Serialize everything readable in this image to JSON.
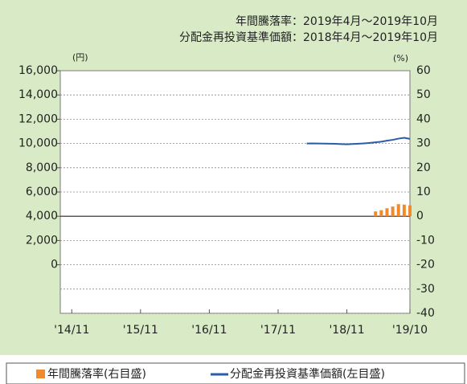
{
  "chart_data": {
    "type": "bar_line",
    "annotations": [
      "年間騰落率：2019年4月～2019年10月",
      "分配金再投資基準価額：2018年4月～2019年10月"
    ],
    "y_unit": "(円)",
    "y2_unit": "(%)",
    "xlim": [
      "2014-09",
      "2019-10"
    ],
    "xticks": [
      {
        "value": "2014-11",
        "label": "'14/11"
      },
      {
        "value": "2015-11",
        "label": "'15/11"
      },
      {
        "value": "2016-11",
        "label": "'16/11"
      },
      {
        "value": "2017-11",
        "label": "'17/11"
      },
      {
        "value": "2018-11",
        "label": "'18/11"
      },
      {
        "value": "2019-10",
        "label": "'19/10"
      }
    ],
    "ylim": [
      -4000,
      16000
    ],
    "yticks": [
      {
        "value": 16000,
        "label": "16,000"
      },
      {
        "value": 14000,
        "label": "14,000"
      },
      {
        "value": 12000,
        "label": "12,000"
      },
      {
        "value": 10000,
        "label": "10,000"
      },
      {
        "value": 8000,
        "label": "8,000"
      },
      {
        "value": 6000,
        "label": "6,000"
      },
      {
        "value": 4000,
        "label": "4,000"
      },
      {
        "value": 2000,
        "label": "2,000"
      },
      0
    ],
    "y2lim": [
      -40,
      60
    ],
    "y2ticks": [
      60,
      50,
      40,
      30,
      20,
      10,
      0,
      -10,
      -20,
      -30,
      -40
    ],
    "grid": true,
    "series": [
      {
        "name": "年間騰落率(右目盛)",
        "color": "#f08a2c",
        "type": "bar",
        "axis": "y2",
        "x": [
          "2019-04",
          "2019-05",
          "2019-06",
          "2019-07",
          "2019-08",
          "2019-09",
          "2019-10"
        ],
        "values": [
          2.0,
          2.5,
          3.3,
          4.0,
          5.0,
          4.8,
          4.5
        ]
      },
      {
        "name": "分配金再投資基準価額(左目盛)",
        "color": "#2a5caa",
        "type": "line",
        "x": [
          "2018-04",
          "2018-05",
          "2018-06",
          "2018-07",
          "2018-08",
          "2018-09",
          "2018-10",
          "2018-11",
          "2018-12",
          "2019-01",
          "2019-02",
          "2019-03",
          "2019-04",
          "2019-05",
          "2019-06",
          "2019-07",
          "2019-08",
          "2019-09",
          "2019-10"
        ],
        "values": [
          10000,
          10010,
          10000,
          9990,
          9980,
          9970,
          9950,
          9930,
          9960,
          9980,
          10010,
          10050,
          10100,
          10150,
          10230,
          10300,
          10400,
          10470,
          10380
        ]
      }
    ]
  }
}
